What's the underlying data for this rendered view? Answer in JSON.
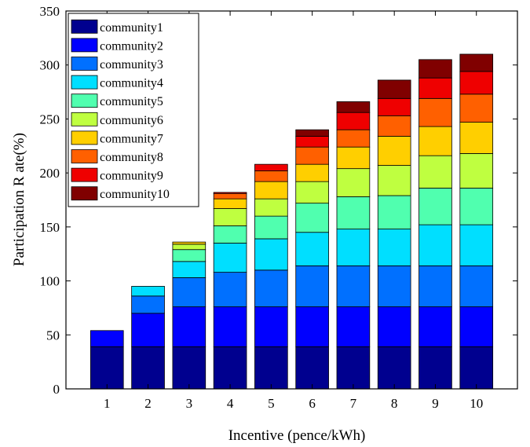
{
  "chart_data": {
    "type": "bar",
    "stacked": true,
    "title": "",
    "xlabel": "Incentive (pence/kWh)",
    "ylabel": "Participation R ate(%)",
    "categories": [
      "1",
      "2",
      "3",
      "4",
      "5",
      "6",
      "7",
      "8",
      "9",
      "10"
    ],
    "ylim": [
      0,
      350
    ],
    "yticks": [
      0,
      50,
      100,
      150,
      200,
      250,
      300,
      350
    ],
    "grid": false,
    "legend_position": "top-left",
    "series": [
      {
        "name": "community1",
        "color": "#00008F",
        "values": [
          39,
          39,
          39,
          39,
          39,
          39,
          39,
          39,
          39,
          39
        ]
      },
      {
        "name": "community2",
        "color": "#0000FF",
        "values": [
          15,
          31,
          37,
          37,
          37,
          37,
          37,
          37,
          37,
          37
        ]
      },
      {
        "name": "community3",
        "color": "#0070FF",
        "values": [
          0,
          16,
          27,
          32,
          34,
          38,
          38,
          38,
          38,
          38
        ]
      },
      {
        "name": "community4",
        "color": "#00DFFF",
        "values": [
          0,
          9,
          15,
          27,
          29,
          31,
          34,
          34,
          38,
          38
        ]
      },
      {
        "name": "community5",
        "color": "#50FFAF",
        "values": [
          0,
          0,
          11,
          16,
          21,
          27,
          30,
          31,
          34,
          34
        ]
      },
      {
        "name": "community6",
        "color": "#BFFF40",
        "values": [
          0,
          0,
          5,
          16,
          16,
          20,
          26,
          28,
          30,
          32
        ]
      },
      {
        "name": "community7",
        "color": "#FFCF00",
        "values": [
          0,
          0,
          2,
          9,
          16,
          16,
          20,
          27,
          27,
          29
        ]
      },
      {
        "name": "community8",
        "color": "#FF6000",
        "values": [
          0,
          0,
          0,
          5,
          10,
          16,
          16,
          19,
          26,
          26
        ]
      },
      {
        "name": "community9",
        "color": "#EF0000",
        "values": [
          0,
          0,
          0,
          1,
          6,
          10,
          16,
          16,
          19,
          21
        ]
      },
      {
        "name": "community10",
        "color": "#800000",
        "values": [
          0,
          0,
          0,
          0,
          0,
          6,
          10,
          17,
          17,
          16
        ]
      }
    ]
  }
}
